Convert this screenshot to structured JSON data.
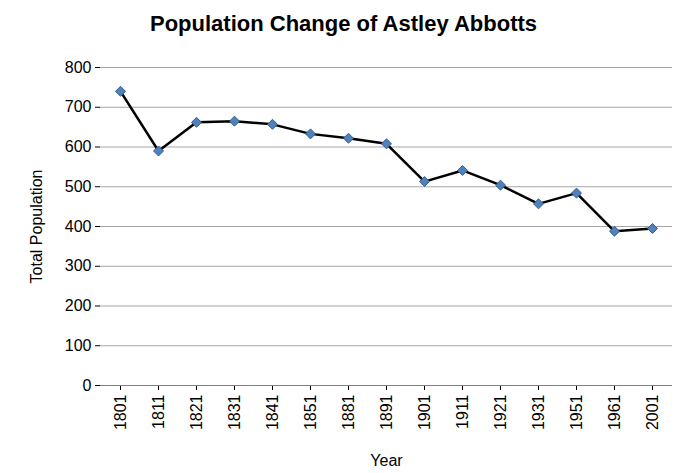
{
  "chart_data": {
    "type": "line",
    "title": "Population Change of Astley Abbotts",
    "x_label": "Year",
    "y_label": "Total Population",
    "categories": [
      "1801",
      "1811",
      "1821",
      "1831",
      "1841",
      "1851",
      "1881",
      "1891",
      "1901",
      "1911",
      "1921",
      "1931",
      "1951",
      "1961",
      "2001"
    ],
    "series": [
      {
        "name": "Total Population",
        "color": "#000000",
        "marker": "diamond",
        "values": [
          740,
          590,
          662,
          665,
          657,
          633,
          622,
          608,
          513,
          541,
          504,
          457,
          484,
          388,
          395
        ]
      }
    ],
    "ylim": [
      0,
      800
    ],
    "yticks": [
      0,
      100,
      200,
      300,
      400,
      500,
      600,
      700,
      800
    ],
    "grid": true
  }
}
